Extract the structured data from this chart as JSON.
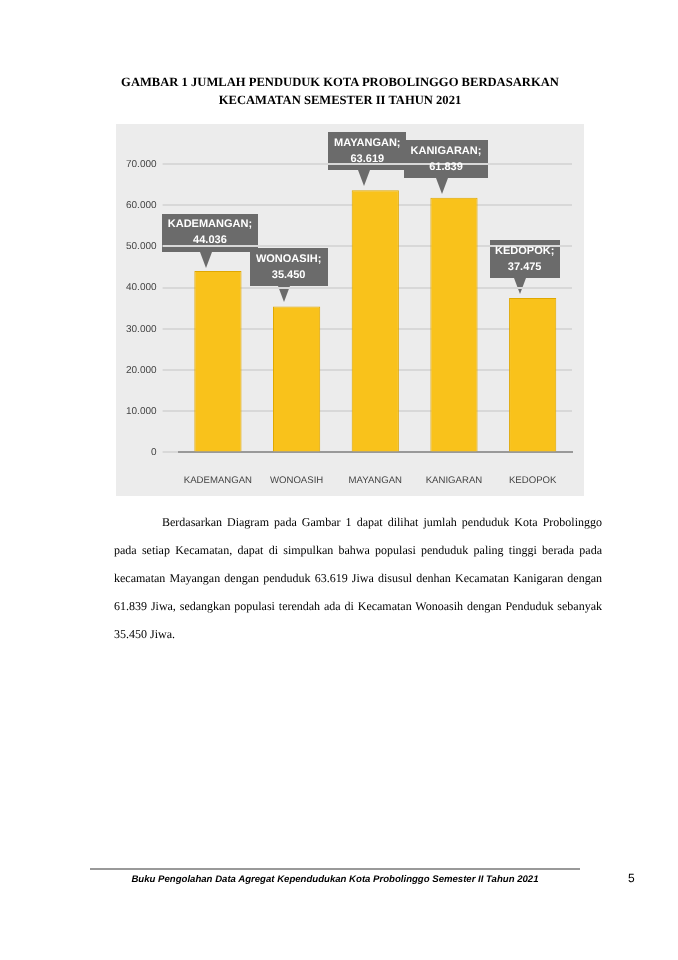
{
  "chart_data": {
    "type": "bar",
    "title": "GAMBAR 1 JUMLAH PENDUDUK KOTA PROBOLINGGO BERDASARKAN KECAMATAN SEMESTER II TAHUN 2021",
    "categories": [
      "KADEMANGAN",
      "WONOASIH",
      "MAYANGAN",
      "KANIGARAN",
      "KEDOPOK"
    ],
    "values": [
      44036,
      35450,
      63619,
      61839,
      37475
    ],
    "value_labels": [
      "KADEMANGAN; 44.036",
      "WONOASIH; 35.450",
      "MAYANGAN; 63.619",
      "KANIGARAN; 61.839",
      "KEDOPOK; 37.475"
    ],
    "color": "#f9c21b",
    "ylim": [
      0,
      70000
    ],
    "yticks": [
      {
        "value": 0,
        "label": "0"
      },
      {
        "value": 10000,
        "label": "10.000"
      },
      {
        "value": 20000,
        "label": "20.000"
      },
      {
        "value": 30000,
        "label": "30.000"
      },
      {
        "value": 40000,
        "label": "40.000"
      },
      {
        "value": 50000,
        "label": "50.000"
      },
      {
        "value": 60000,
        "label": "60.000"
      },
      {
        "value": 70000,
        "label": "70.000"
      }
    ],
    "grid": "y",
    "legend": false,
    "annotations": [
      "Berdasarkan Diagram pada Gambar 1 dapat dilihat jumlah penduduk Kota Probolinggo pada setiap Kecamatan, dapat di simpulkan bahwa populasi penduduk paling tinggi berada pada kecamatan Mayangan dengan penduduk 63.619 Jiwa disusul denhan Kecamatan Kanigaran dengan 61.839 Jiwa, sedangkan populasi terendah ada di Kecamatan Wonoasih dengan Penduduk sebanyak 35.450 Jiwa.",
      "Buku Pengolahan Data Agregat Kependudukan Kota Probolinggo Semester II Tahun 2021",
      "5"
    ]
  }
}
